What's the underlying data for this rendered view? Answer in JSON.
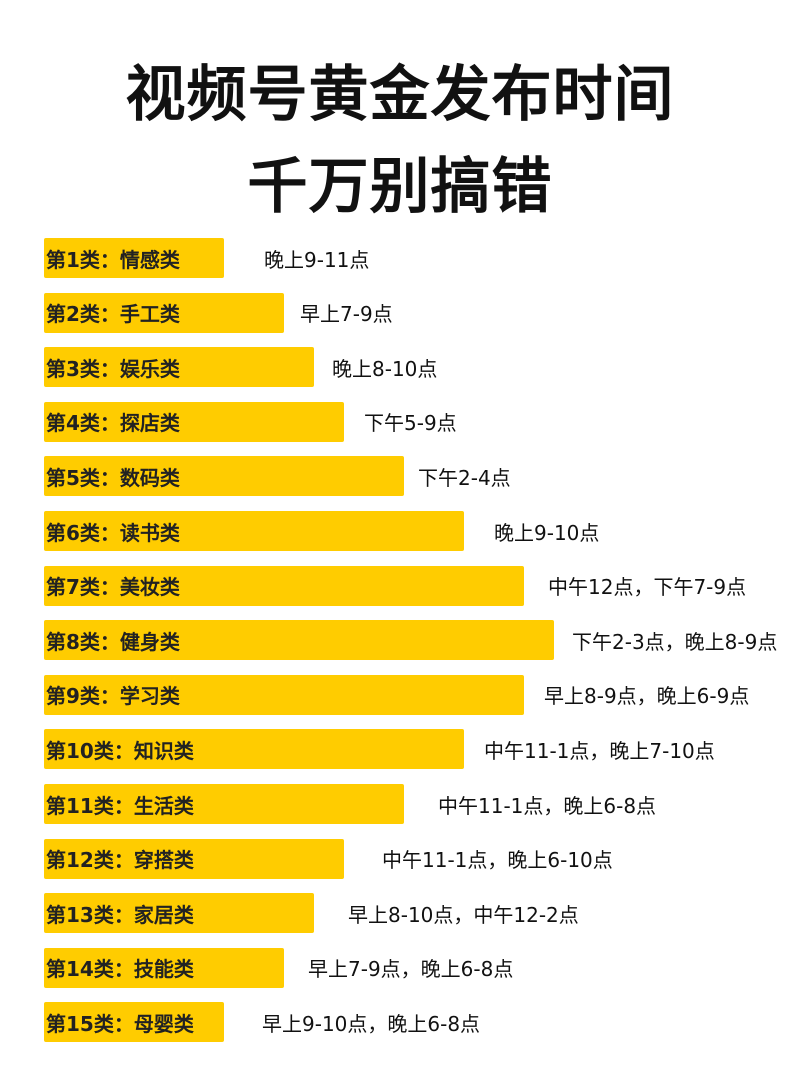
{
  "title_line1": "视频号黄金发布时间",
  "title_line2": "千万别搞错",
  "accent_color": "#FFCC00",
  "rows": [
    {
      "label": "第1类：情感类",
      "time": "晚上9-11点"
    },
    {
      "label": "第2类：手工类",
      "time": "早上7-9点"
    },
    {
      "label": "第3类：娱乐类",
      "time": "晚上8-10点"
    },
    {
      "label": "第4类：探店类",
      "time": "下午5-9点"
    },
    {
      "label": "第5类：数码类",
      "time": "下午2-4点"
    },
    {
      "label": "第6类：读书类",
      "time": "晚上9-10点"
    },
    {
      "label": "第7类：美妆类",
      "time": "中午12点，下午7-9点"
    },
    {
      "label": "第8类：健身类",
      "time": "下午2-3点，晚上8-9点"
    },
    {
      "label": "第9类：学习类",
      "time": "早上8-9点，晚上6-9点"
    },
    {
      "label": "第10类：知识类",
      "time": "中午11-1点，晚上7-10点"
    },
    {
      "label": "第11类：生活类",
      "time": "中午11-1点，晚上6-8点"
    },
    {
      "label": "第12类：穿搭类",
      "time": "中午11-1点，晚上6-10点"
    },
    {
      "label": "第13类：家居类",
      "time": "早上8-10点，中午12-2点"
    },
    {
      "label": "第14类：技能类",
      "time": "早上7-9点，晚上6-8点"
    },
    {
      "label": "第15类：母婴类",
      "time": "早上9-10点，晚上6-8点"
    }
  ]
}
